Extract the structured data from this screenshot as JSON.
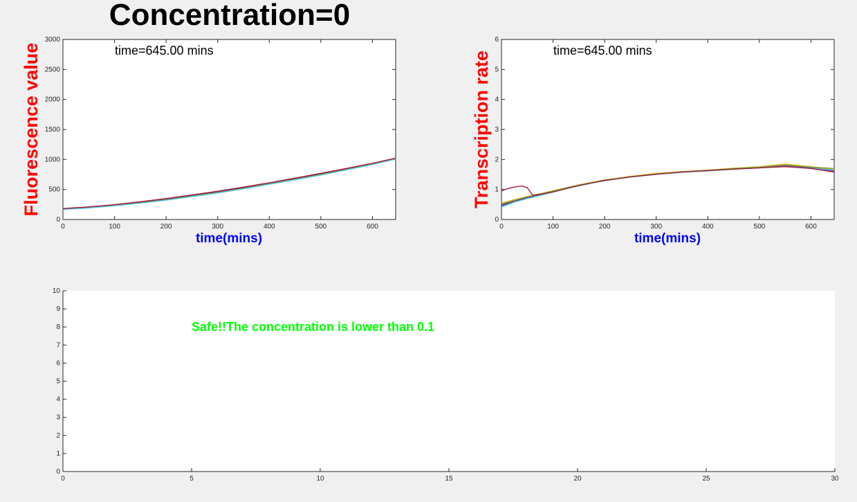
{
  "figure": {
    "title": "Concentration=0"
  },
  "chart_data": [
    {
      "id": "fluorescence",
      "type": "line",
      "title": "",
      "xlabel": "time(mins)",
      "ylabel": "Fluorescence value",
      "xlim": [
        0,
        645
      ],
      "ylim": [
        0,
        3000
      ],
      "xticks": [
        0,
        100,
        200,
        300,
        400,
        500,
        600
      ],
      "yticks": [
        0,
        500,
        1000,
        1500,
        2000,
        2500,
        3000
      ],
      "annotation": "time=645.00 mins",
      "colors": {
        "xlabel": "#0000ff",
        "ylabel": "#ff0000"
      },
      "series": [
        {
          "color": "#0072bd",
          "x": [
            0,
            50,
            100,
            150,
            200,
            250,
            300,
            350,
            400,
            450,
            500,
            550,
            600,
            645
          ],
          "y": [
            170,
            195,
            230,
            275,
            325,
            385,
            445,
            515,
            590,
            665,
            745,
            830,
            920,
            1010
          ]
        },
        {
          "color": "#d95319",
          "x": [
            0,
            50,
            100,
            150,
            200,
            250,
            300,
            350,
            400,
            450,
            500,
            550,
            600,
            645
          ],
          "y": [
            180,
            208,
            245,
            292,
            344,
            405,
            468,
            535,
            608,
            685,
            765,
            848,
            935,
            1020
          ]
        },
        {
          "color": "#edb120",
          "x": [
            0,
            50,
            100,
            150,
            200,
            250,
            300,
            350,
            400,
            450,
            500,
            550,
            600,
            645
          ],
          "y": [
            175,
            200,
            238,
            283,
            334,
            395,
            456,
            525,
            600,
            676,
            757,
            840,
            928,
            1015
          ]
        },
        {
          "color": "#7e2f8e",
          "x": [
            0,
            50,
            100,
            150,
            200,
            250,
            300,
            350,
            400,
            450,
            500,
            550,
            600,
            645
          ],
          "y": [
            178,
            204,
            240,
            287,
            338,
            398,
            460,
            528,
            603,
            680,
            760,
            843,
            931,
            1018
          ]
        },
        {
          "color": "#77ac30",
          "x": [
            0,
            50,
            100,
            150,
            200,
            250,
            300,
            350,
            400,
            450,
            500,
            550,
            600,
            645
          ],
          "y": [
            172,
            197,
            233,
            278,
            329,
            390,
            450,
            519,
            594,
            670,
            750,
            834,
            923,
            1012
          ]
        },
        {
          "color": "#4dbeee",
          "x": [
            0,
            50,
            100,
            150,
            200,
            250,
            300,
            350,
            400,
            450,
            500,
            550,
            600,
            645
          ],
          "y": [
            168,
            192,
            228,
            272,
            322,
            381,
            441,
            511,
            586,
            661,
            741,
            826,
            916,
            1005
          ]
        },
        {
          "color": "#a2142f",
          "x": [
            0,
            50,
            100,
            150,
            200,
            250,
            300,
            350,
            400,
            450,
            500,
            550,
            600,
            645
          ],
          "y": [
            182,
            210,
            248,
            296,
            348,
            410,
            472,
            540,
            612,
            690,
            770,
            852,
            938,
            1022
          ]
        }
      ]
    },
    {
      "id": "transcription",
      "type": "line",
      "title": "",
      "xlabel": "time(mins)",
      "ylabel": "Transcription rate",
      "xlim": [
        0,
        645
      ],
      "ylim": [
        0,
        6
      ],
      "xticks": [
        0,
        100,
        200,
        300,
        400,
        500,
        600
      ],
      "yticks": [
        0,
        1,
        2,
        3,
        4,
        5,
        6
      ],
      "annotation": "time=645.00 mins",
      "colors": {
        "xlabel": "#0000ff",
        "ylabel": "#ff0000"
      },
      "series": [
        {
          "color": "#0072bd",
          "x": [
            0,
            25,
            50,
            75,
            100,
            125,
            150,
            175,
            200,
            250,
            300,
            350,
            400,
            450,
            500,
            550,
            600,
            645
          ],
          "y": [
            0.45,
            0.6,
            0.72,
            0.82,
            0.92,
            1.03,
            1.13,
            1.22,
            1.3,
            1.42,
            1.52,
            1.58,
            1.63,
            1.68,
            1.73,
            1.78,
            1.72,
            1.65
          ]
        },
        {
          "color": "#d95319",
          "x": [
            0,
            25,
            50,
            75,
            100,
            125,
            150,
            175,
            200,
            250,
            300,
            350,
            400,
            450,
            500,
            550,
            600,
            645
          ],
          "y": [
            0.5,
            0.63,
            0.75,
            0.84,
            0.94,
            1.05,
            1.15,
            1.23,
            1.31,
            1.43,
            1.53,
            1.59,
            1.64,
            1.69,
            1.74,
            1.8,
            1.74,
            1.62
          ]
        },
        {
          "color": "#edb120",
          "x": [
            0,
            25,
            50,
            75,
            100,
            125,
            150,
            175,
            200,
            250,
            300,
            350,
            400,
            450,
            500,
            550,
            600,
            645
          ],
          "y": [
            0.55,
            0.66,
            0.77,
            0.86,
            0.96,
            1.06,
            1.16,
            1.24,
            1.32,
            1.44,
            1.54,
            1.6,
            1.65,
            1.71,
            1.76,
            1.85,
            1.76,
            1.68
          ]
        },
        {
          "color": "#7e2f8e",
          "x": [
            0,
            25,
            50,
            75,
            100,
            125,
            150,
            175,
            200,
            250,
            300,
            350,
            400,
            450,
            500,
            550,
            600,
            645
          ],
          "y": [
            0.48,
            0.61,
            0.73,
            0.83,
            0.93,
            1.04,
            1.14,
            1.22,
            1.3,
            1.42,
            1.51,
            1.58,
            1.62,
            1.68,
            1.72,
            1.79,
            1.73,
            1.6
          ]
        },
        {
          "color": "#77ac30",
          "x": [
            0,
            25,
            50,
            75,
            100,
            125,
            150,
            175,
            200,
            250,
            300,
            350,
            400,
            450,
            500,
            550,
            600,
            645
          ],
          "y": [
            0.52,
            0.64,
            0.76,
            0.85,
            0.95,
            1.05,
            1.15,
            1.23,
            1.31,
            1.43,
            1.52,
            1.59,
            1.64,
            1.7,
            1.75,
            1.82,
            1.75,
            1.7
          ]
        },
        {
          "color": "#4dbeee",
          "x": [
            0,
            25,
            50,
            75,
            100,
            125,
            150,
            175,
            200,
            250,
            300,
            350,
            400,
            450,
            500,
            550,
            600,
            645
          ],
          "y": [
            0.42,
            0.58,
            0.7,
            0.8,
            0.91,
            1.02,
            1.12,
            1.21,
            1.29,
            1.41,
            1.5,
            1.57,
            1.62,
            1.67,
            1.72,
            1.77,
            1.71,
            1.64
          ]
        },
        {
          "color": "#a2142f",
          "x": [
            0,
            10,
            25,
            40,
            50,
            60,
            75,
            100,
            125,
            150,
            175,
            200,
            250,
            300,
            350,
            400,
            450,
            500,
            550,
            600,
            645
          ],
          "y": [
            0.95,
            1.02,
            1.08,
            1.12,
            1.06,
            0.82,
            0.84,
            0.92,
            1.03,
            1.13,
            1.22,
            1.3,
            1.42,
            1.51,
            1.58,
            1.63,
            1.68,
            1.72,
            1.76,
            1.7,
            1.58
          ]
        }
      ]
    },
    {
      "id": "status",
      "type": "line",
      "title": "",
      "xlabel": "",
      "ylabel": "",
      "xlim": [
        0,
        30
      ],
      "ylim": [
        0,
        10
      ],
      "xticks": [
        0,
        5,
        10,
        15,
        20,
        25,
        30
      ],
      "yticks": [
        0,
        1,
        2,
        3,
        4,
        5,
        6,
        7,
        8,
        9,
        10
      ],
      "annotation": "Safe!!The concentration is lower than 0.1",
      "colors": {
        "annotation": "#00ff00"
      },
      "series": []
    }
  ]
}
